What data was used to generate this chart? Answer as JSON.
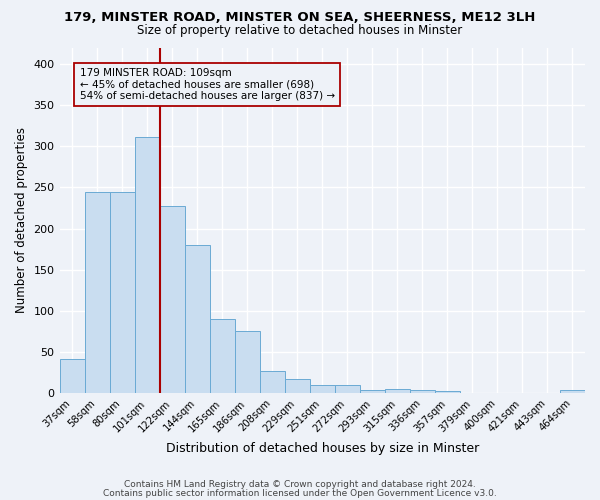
{
  "title_line1": "179, MINSTER ROAD, MINSTER ON SEA, SHEERNESS, ME12 3LH",
  "title_line2": "Size of property relative to detached houses in Minster",
  "xlabel": "Distribution of detached houses by size in Minster",
  "ylabel": "Number of detached properties",
  "bar_labels": [
    "37sqm",
    "58sqm",
    "80sqm",
    "101sqm",
    "122sqm",
    "144sqm",
    "165sqm",
    "186sqm",
    "208sqm",
    "229sqm",
    "251sqm",
    "272sqm",
    "293sqm",
    "315sqm",
    "336sqm",
    "357sqm",
    "379sqm",
    "400sqm",
    "421sqm",
    "443sqm",
    "464sqm"
  ],
  "bar_values": [
    42,
    245,
    245,
    311,
    227,
    180,
    90,
    75,
    27,
    17,
    10,
    10,
    4,
    5,
    4,
    3,
    0,
    0,
    0,
    0,
    4
  ],
  "bar_color": "#c9ddf0",
  "bar_edge_color": "#6aaad4",
  "vline_x": 3.5,
  "vline_color": "#aa0000",
  "annotation_text": "179 MINSTER ROAD: 109sqm\n← 45% of detached houses are smaller (698)\n54% of semi-detached houses are larger (837) →",
  "ylim": [
    0,
    420
  ],
  "yticks": [
    0,
    50,
    100,
    150,
    200,
    250,
    300,
    350,
    400
  ],
  "background_color": "#eef2f8",
  "grid_color": "#ffffff",
  "footer_line1": "Contains HM Land Registry data © Crown copyright and database right 2024.",
  "footer_line2": "Contains public sector information licensed under the Open Government Licence v3.0."
}
